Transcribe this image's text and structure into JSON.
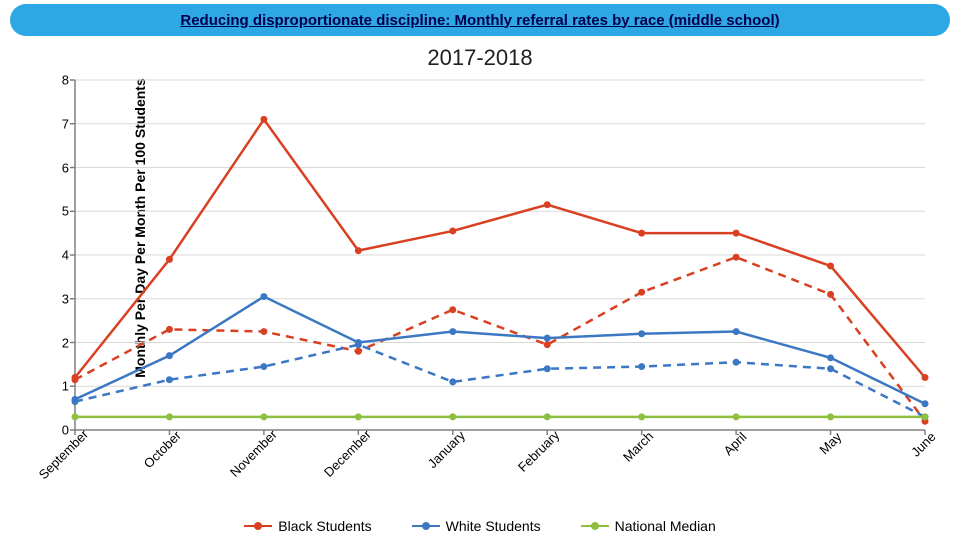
{
  "banner": {
    "text": "Reducing disproportionate discipline: Monthly referral rates by race (middle school)",
    "bg_color": "#2ea8e4",
    "text_color": "#00004d"
  },
  "subtitle": "2017-2018",
  "ylabel": "Monthly Per Day Per Month Per 100 Students",
  "chart": {
    "type": "line",
    "xlabels": [
      "September",
      "October",
      "November",
      "December",
      "January",
      "February",
      "March",
      "April",
      "May",
      "June"
    ],
    "ylim": [
      0,
      8
    ],
    "ytick_step": 1,
    "grid_color": "#d9d9d9",
    "axis_color": "#808080",
    "background_color": "#ffffff",
    "xlabel_rotation": -45,
    "xlabel_fontsize": 13,
    "ylabel_fontsize": 13,
    "series": [
      {
        "name": "Black Students",
        "color": "#d94022",
        "marker": "circle",
        "marker_size": 7,
        "line_width": 2.5,
        "dash": "solid",
        "values": [
          1.2,
          3.9,
          7.1,
          4.1,
          4.55,
          5.15,
          4.5,
          4.5,
          3.75,
          1.2
        ]
      },
      {
        "name": "Black Students (dashed)",
        "color": "#d94022",
        "marker": "circle",
        "marker_size": 7,
        "line_width": 2.5,
        "dash": "8,6",
        "values": [
          1.15,
          2.3,
          2.25,
          1.8,
          2.75,
          1.95,
          3.15,
          3.95,
          3.1,
          0.2
        ]
      },
      {
        "name": "White Students",
        "color": "#3b77c2",
        "marker": "circle",
        "marker_size": 7,
        "line_width": 2.5,
        "dash": "solid",
        "values": [
          0.7,
          1.7,
          3.05,
          2.0,
          2.25,
          2.1,
          2.2,
          2.25,
          1.65,
          0.6
        ]
      },
      {
        "name": "White Students (dashed)",
        "color": "#3b77c2",
        "marker": "circle",
        "marker_size": 7,
        "line_width": 2.5,
        "dash": "8,6",
        "values": [
          0.65,
          1.15,
          1.45,
          1.95,
          1.1,
          1.4,
          1.45,
          1.55,
          1.4,
          0.3
        ]
      },
      {
        "name": "National Median",
        "color": "#8fbf3f",
        "marker": "circle",
        "marker_size": 7,
        "line_width": 2.5,
        "dash": "solid",
        "values": [
          0.3,
          0.3,
          0.3,
          0.3,
          0.3,
          0.3,
          0.3,
          0.3,
          0.3,
          0.3
        ]
      }
    ]
  },
  "legend": {
    "items": [
      {
        "label": "Black Students",
        "color": "#d94022"
      },
      {
        "label": "White Students",
        "color": "#3b77c2"
      },
      {
        "label": "National Median",
        "color": "#8fbf3f"
      }
    ],
    "fontsize": 14
  }
}
